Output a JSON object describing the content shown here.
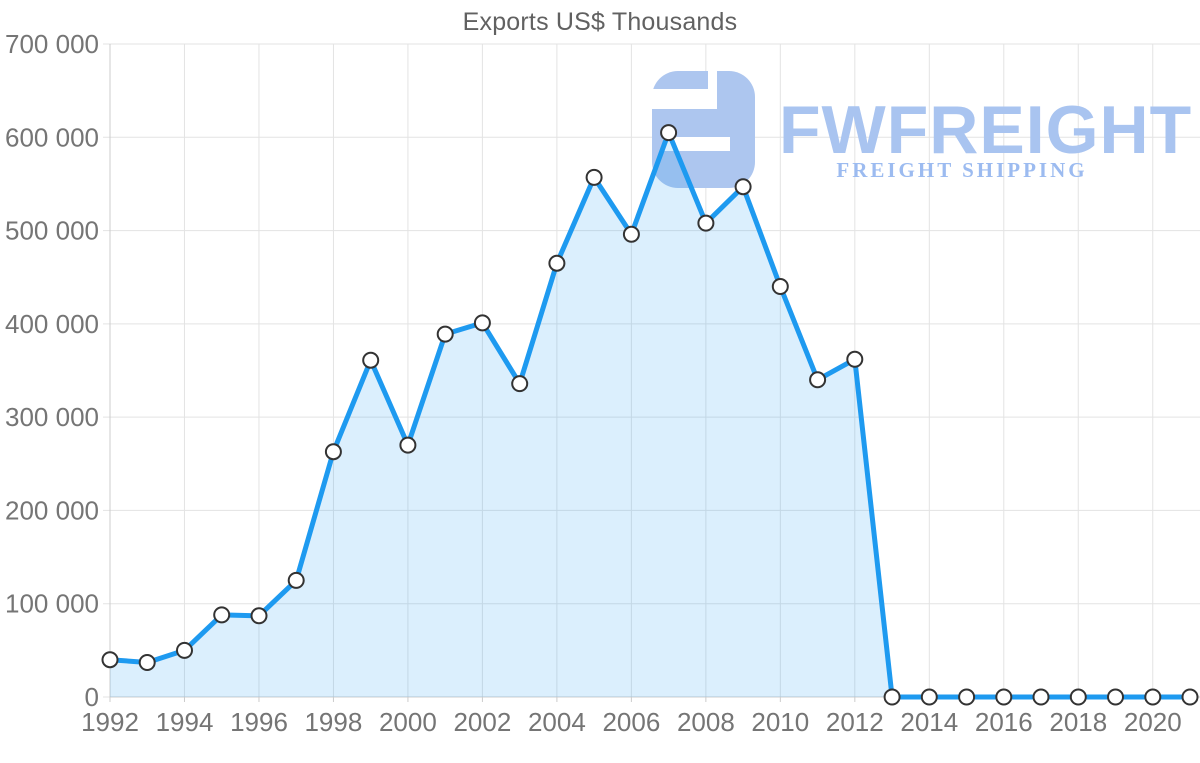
{
  "watermark": {
    "brand": "FWFREIGHT",
    "tagline": "FREIGHT SHIPPING"
  },
  "colors": {
    "line": "#1e9af0",
    "area_fill": "rgba(30,154,240,0.16)",
    "marker_fill": "#ffffff",
    "marker_stroke": "#333333",
    "grid": "#e3e3e3",
    "axis": "#cccccc",
    "tick_label": "#757575",
    "title": "#616161",
    "watermark_mark": "#adc6ef",
    "watermark_brand": "#a9c4f0",
    "watermark_tagline": "#9cbbf0"
  },
  "chart_data": {
    "type": "area",
    "title": "Exports US$ Thousands",
    "xlabel": "",
    "ylabel": "",
    "grid": "on",
    "legend": "none",
    "marker": "circle",
    "ylim": [
      0,
      700000
    ],
    "x": [
      1992,
      1993,
      1994,
      1995,
      1996,
      1997,
      1998,
      1999,
      2000,
      2001,
      2002,
      2003,
      2004,
      2005,
      2006,
      2007,
      2008,
      2009,
      2010,
      2011,
      2012,
      2013,
      2014,
      2015,
      2016,
      2017,
      2018,
      2019,
      2020,
      2021
    ],
    "values": [
      40000,
      37000,
      50000,
      88000,
      87000,
      125000,
      263000,
      361000,
      270000,
      389000,
      401000,
      336000,
      465000,
      557000,
      496000,
      605000,
      508000,
      547000,
      440000,
      340000,
      362000,
      0,
      0,
      0,
      0,
      0,
      0,
      0,
      0,
      0
    ],
    "y_ticks": [
      0,
      100000,
      200000,
      300000,
      400000,
      500000,
      600000,
      700000
    ],
    "y_tick_labels": [
      "0",
      "100 000",
      "200 000",
      "300 000",
      "400 000",
      "500 000",
      "600 000",
      "700 000"
    ],
    "x_ticks": [
      1992,
      1994,
      1996,
      1998,
      2000,
      2002,
      2004,
      2006,
      2008,
      2010,
      2012,
      2014,
      2016,
      2018,
      2020
    ]
  }
}
